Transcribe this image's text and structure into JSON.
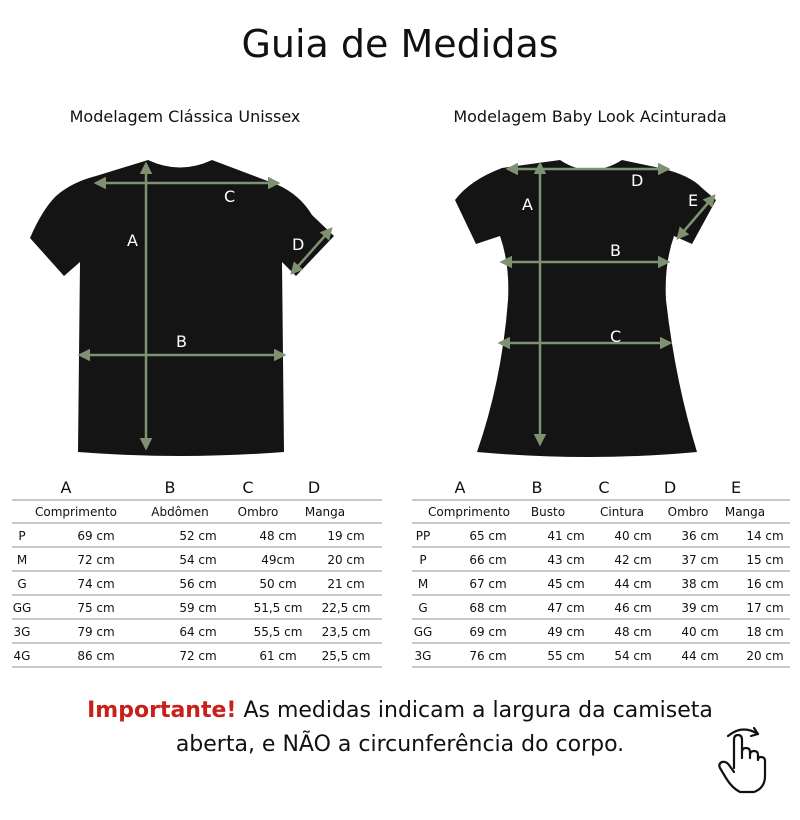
{
  "title": "Guia de Medidas",
  "colors": {
    "arrow": "#7e9170",
    "shirt": "#141414",
    "important": "#c8201a",
    "rule": "#c9c9c4"
  },
  "classic": {
    "subtitle": "Modelagem Clássica Unissex",
    "diagram_labels": [
      "A",
      "B",
      "C",
      "D"
    ],
    "table": {
      "letters": [
        "A",
        "B",
        "C",
        "D"
      ],
      "headers": [
        "Comprimento",
        "Abdômen",
        "Ombro",
        "Manga"
      ],
      "rows": [
        [
          "P",
          "69 cm",
          "52 cm",
          "48 cm",
          "19 cm"
        ],
        [
          "M",
          "72 cm",
          "54 cm",
          "49cm",
          "20 cm"
        ],
        [
          "G",
          "74 cm",
          "56 cm",
          "50 cm",
          "21 cm"
        ],
        [
          "GG",
          "75 cm",
          "59 cm",
          "51,5 cm",
          "22,5 cm"
        ],
        [
          "3G",
          "79 cm",
          "64 cm",
          "55,5 cm",
          "23,5 cm"
        ],
        [
          "4G",
          "86 cm",
          "72 cm",
          "61 cm",
          "25,5 cm"
        ]
      ]
    }
  },
  "babylook": {
    "subtitle": "Modelagem Baby Look Acinturada",
    "diagram_labels": [
      "A",
      "B",
      "C",
      "D",
      "E"
    ],
    "table": {
      "letters": [
        "A",
        "B",
        "C",
        "D",
        "E"
      ],
      "headers": [
        "Comprimento",
        "Busto",
        "Cintura",
        "Ombro",
        "Manga"
      ],
      "rows": [
        [
          "PP",
          "65 cm",
          "41 cm",
          "40 cm",
          "36 cm",
          "14 cm"
        ],
        [
          "P",
          "66 cm",
          "43 cm",
          "42 cm",
          "37 cm",
          "15 cm"
        ],
        [
          "M",
          "67 cm",
          "45 cm",
          "44 cm",
          "38 cm",
          "16 cm"
        ],
        [
          "G",
          "68 cm",
          "47 cm",
          "46 cm",
          "39 cm",
          "17 cm"
        ],
        [
          "GG",
          "69 cm",
          "49 cm",
          "48 cm",
          "40 cm",
          "18 cm"
        ],
        [
          "3G",
          "76 cm",
          "55 cm",
          "54 cm",
          "44 cm",
          "20 cm"
        ]
      ]
    }
  },
  "note": {
    "important": "Importante!",
    "line1": " As medidas indicam a largura da camiseta",
    "line2": "aberta, e NÃO a circunferência do corpo."
  },
  "icons": {
    "swipe": "hand-swipe-icon"
  }
}
